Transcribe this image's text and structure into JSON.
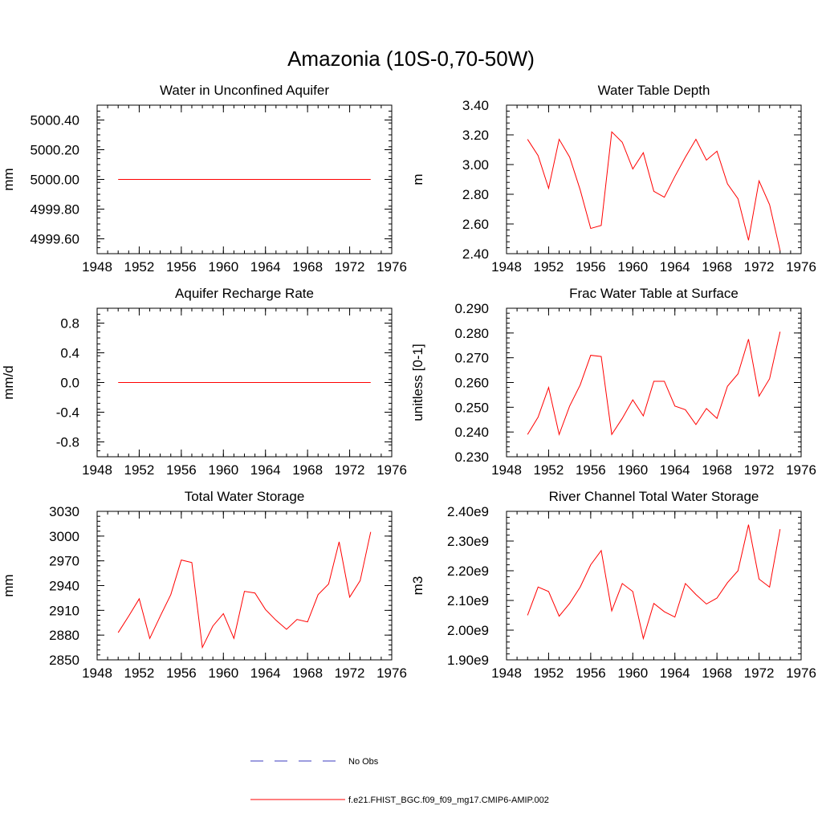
{
  "figure_title": "Amazonia (10S-0,70-50W)",
  "colors": {
    "model": "#ff0000",
    "obs": "#3b3bbf",
    "axis": "#000000"
  },
  "legend": [
    {
      "label": "No Obs",
      "style": "dashed",
      "color": "#3b3bbf"
    },
    {
      "label": "f.e21.FHIST_BGC.f09_f09_mg17.CMIP6-AMIP.002",
      "style": "solid",
      "color": "#ff0000"
    }
  ],
  "chart_data": [
    {
      "type": "line",
      "title": "Water in Unconfined Aquifer",
      "ylabel": "mm",
      "xlim": [
        1948,
        1976
      ],
      "x_ticks": [
        "1948",
        "1952",
        "1956",
        "1960",
        "1964",
        "1968",
        "1972",
        "1976"
      ],
      "ylim": [
        4999.5,
        5000.5
      ],
      "y_ticks": [
        4999.6,
        4999.8,
        5000.0,
        5000.2,
        5000.4
      ],
      "y_tick_labels": [
        "4999.60",
        "4999.80",
        "5000.00",
        "5000.20",
        "5000.40"
      ],
      "y_minor": 0.04,
      "x": [
        1950,
        1951,
        1952,
        1953,
        1954,
        1955,
        1956,
        1957,
        1958,
        1959,
        1960,
        1961,
        1962,
        1963,
        1964,
        1965,
        1966,
        1967,
        1968,
        1969,
        1970,
        1971,
        1972,
        1973,
        1974
      ],
      "series": [
        {
          "name": "f.e21.FHIST_BGC.f09_f09_mg17.CMIP6-AMIP.002",
          "values": [
            5000,
            5000,
            5000,
            5000,
            5000,
            5000,
            5000,
            5000,
            5000,
            5000,
            5000,
            5000,
            5000,
            5000,
            5000,
            5000,
            5000,
            5000,
            5000,
            5000,
            5000,
            5000,
            5000,
            5000,
            5000
          ]
        }
      ]
    },
    {
      "type": "line",
      "title": "Water Table Depth",
      "ylabel": "m",
      "xlim": [
        1948,
        1976
      ],
      "x_ticks": [
        "1948",
        "1952",
        "1956",
        "1960",
        "1964",
        "1968",
        "1972",
        "1976"
      ],
      "ylim": [
        2.4,
        3.4
      ],
      "y_ticks": [
        2.4,
        2.6,
        2.8,
        3.0,
        3.2,
        3.4
      ],
      "y_tick_labels": [
        "2.40",
        "2.60",
        "2.80",
        "3.00",
        "3.20",
        "3.40"
      ],
      "y_minor": 0.04,
      "x": [
        1950,
        1951,
        1952,
        1953,
        1954,
        1955,
        1956,
        1957,
        1958,
        1959,
        1960,
        1961,
        1962,
        1963,
        1964,
        1965,
        1966,
        1967,
        1968,
        1969,
        1970,
        1971,
        1972,
        1973,
        1974
      ],
      "series": [
        {
          "name": "f.e21.FHIST_BGC.f09_f09_mg17.CMIP6-AMIP.002",
          "values": [
            3.17,
            3.06,
            2.84,
            3.17,
            3.05,
            2.83,
            2.57,
            2.59,
            3.22,
            3.15,
            2.97,
            3.08,
            2.82,
            2.78,
            2.92,
            3.05,
            3.17,
            3.03,
            3.09,
            2.87,
            2.77,
            2.49,
            2.89,
            2.73,
            2.42
          ]
        }
      ]
    },
    {
      "type": "line",
      "title": "Aquifer Recharge Rate",
      "ylabel": "mm/d",
      "xlim": [
        1948,
        1976
      ],
      "x_ticks": [
        "1948",
        "1952",
        "1956",
        "1960",
        "1964",
        "1968",
        "1972",
        "1976"
      ],
      "ylim": [
        -1.0,
        1.0
      ],
      "y_ticks": [
        -0.8,
        -0.4,
        0.0,
        0.4,
        0.8
      ],
      "y_tick_labels": [
        "-0.8",
        "-0.4",
        "0.0",
        "0.4",
        "0.8"
      ],
      "y_minor": 0.08,
      "x": [
        1950,
        1951,
        1952,
        1953,
        1954,
        1955,
        1956,
        1957,
        1958,
        1959,
        1960,
        1961,
        1962,
        1963,
        1964,
        1965,
        1966,
        1967,
        1968,
        1969,
        1970,
        1971,
        1972,
        1973,
        1974
      ],
      "series": [
        {
          "name": "f.e21.FHIST_BGC.f09_f09_mg17.CMIP6-AMIP.002",
          "values": [
            0,
            0,
            0,
            0,
            0,
            0,
            0,
            0,
            0,
            0,
            0,
            0,
            0,
            0,
            0,
            0,
            0,
            0,
            0,
            0,
            0,
            0,
            0,
            0,
            0
          ]
        }
      ]
    },
    {
      "type": "line",
      "title": "Frac Water Table at Surface",
      "ylabel": "unitless [0-1]",
      "xlim": [
        1948,
        1976
      ],
      "x_ticks": [
        "1948",
        "1952",
        "1956",
        "1960",
        "1964",
        "1968",
        "1972",
        "1976"
      ],
      "ylim": [
        0.23,
        0.29
      ],
      "y_ticks": [
        0.23,
        0.24,
        0.25,
        0.26,
        0.27,
        0.28,
        0.29
      ],
      "y_tick_labels": [
        "0.230",
        "0.240",
        "0.250",
        "0.260",
        "0.270",
        "0.280",
        "0.290"
      ],
      "y_minor": 0.002,
      "x": [
        1950,
        1951,
        1952,
        1953,
        1954,
        1955,
        1956,
        1957,
        1958,
        1959,
        1960,
        1961,
        1962,
        1963,
        1964,
        1965,
        1966,
        1967,
        1968,
        1969,
        1970,
        1971,
        1972,
        1973,
        1974
      ],
      "series": [
        {
          "name": "f.e21.FHIST_BGC.f09_f09_mg17.CMIP6-AMIP.002",
          "values": [
            0.239,
            0.246,
            0.258,
            0.239,
            0.2505,
            0.259,
            0.271,
            0.2705,
            0.239,
            0.2455,
            0.253,
            0.2465,
            0.2605,
            0.2605,
            0.2505,
            0.249,
            0.243,
            0.2495,
            0.2455,
            0.2585,
            0.2635,
            0.2775,
            0.2545,
            0.2615,
            0.2805
          ]
        }
      ]
    },
    {
      "type": "line",
      "title": "Total Water Storage",
      "ylabel": "mm",
      "xlim": [
        1948,
        1976
      ],
      "x_ticks": [
        "1948",
        "1952",
        "1956",
        "1960",
        "1964",
        "1968",
        "1972",
        "1976"
      ],
      "ylim": [
        2850,
        3030
      ],
      "y_ticks": [
        2850,
        2880,
        2910,
        2940,
        2970,
        3000,
        3030
      ],
      "y_tick_labels": [
        "2850",
        "2880",
        "2910",
        "2940",
        "2970",
        "3000",
        "3030"
      ],
      "y_minor": 6,
      "x": [
        1950,
        1951,
        1952,
        1953,
        1954,
        1955,
        1956,
        1957,
        1958,
        1959,
        1960,
        1961,
        1962,
        1963,
        1964,
        1965,
        1966,
        1967,
        1968,
        1969,
        1970,
        1971,
        1972,
        1973,
        1974
      ],
      "series": [
        {
          "name": "f.e21.FHIST_BGC.f09_f09_mg17.CMIP6-AMIP.002",
          "values": [
            2883,
            2903,
            2924,
            2876,
            2903,
            2929,
            2971,
            2968,
            2865,
            2891,
            2906,
            2876,
            2933,
            2931,
            2911,
            2898,
            2887,
            2899,
            2896,
            2929,
            2942,
            2993,
            2926,
            2946,
            3005
          ]
        }
      ]
    },
    {
      "type": "line",
      "title": "River Channel Total Water Storage",
      "ylabel": "m3",
      "xlim": [
        1948,
        1976
      ],
      "x_ticks": [
        "1948",
        "1952",
        "1956",
        "1960",
        "1964",
        "1968",
        "1972",
        "1976"
      ],
      "ylim": [
        1900000000.0,
        2400000000.0
      ],
      "y_ticks": [
        1900000000.0,
        2000000000.0,
        2100000000.0,
        2200000000.0,
        2300000000.0,
        2400000000.0
      ],
      "y_tick_labels": [
        "1.90e9",
        "2.00e9",
        "2.10e9",
        "2.20e9",
        "2.30e9",
        "2.40e9"
      ],
      "y_minor": 20000000.0,
      "x": [
        1950,
        1951,
        1952,
        1953,
        1954,
        1955,
        1956,
        1957,
        1958,
        1959,
        1960,
        1961,
        1962,
        1963,
        1964,
        1965,
        1966,
        1967,
        1968,
        1969,
        1970,
        1971,
        1972,
        1973,
        1974
      ],
      "series": [
        {
          "name": "f.e21.FHIST_BGC.f09_f09_mg17.CMIP6-AMIP.002",
          "values": [
            2050000000.0,
            2145000000.0,
            2130000000.0,
            2047000000.0,
            2090000000.0,
            2145000000.0,
            2220000000.0,
            2268000000.0,
            2065000000.0,
            2157000000.0,
            2130000000.0,
            1972000000.0,
            2090000000.0,
            2062000000.0,
            2044000000.0,
            2157000000.0,
            2120000000.0,
            2088000000.0,
            2108000000.0,
            2160000000.0,
            2200000000.0,
            2355000000.0,
            2172000000.0,
            2145000000.0,
            2340000000.0
          ]
        }
      ]
    }
  ]
}
